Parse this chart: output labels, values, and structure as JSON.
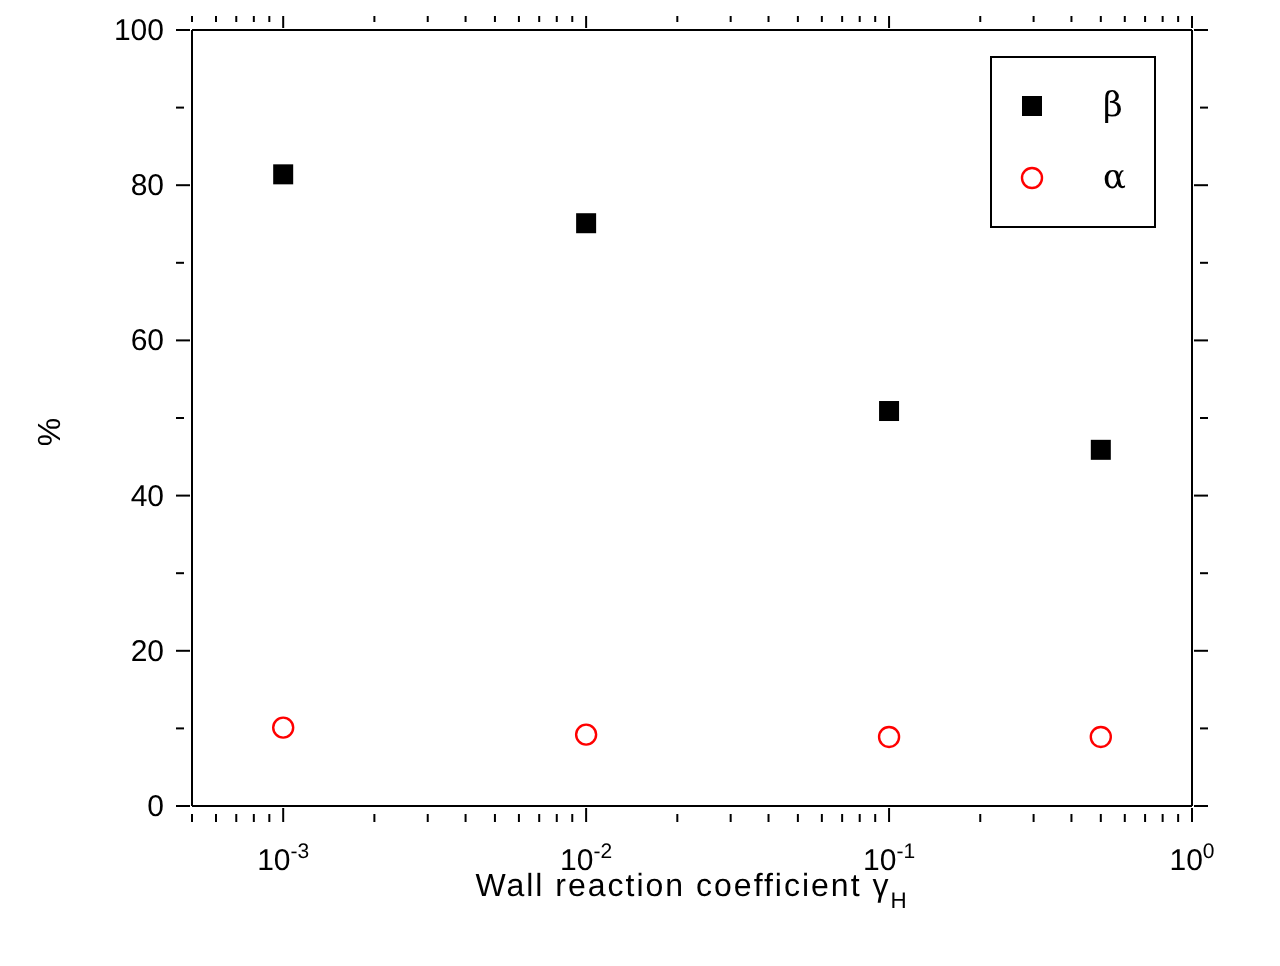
{
  "chart_data": {
    "type": "scatter",
    "xlabel": "Wall reaction coefficient γ$_{H}$",
    "ylabel": "%",
    "log": "x",
    "x": [
      0.001,
      0.01,
      0.1,
      0.5
    ],
    "series": [
      {
        "name": "β",
        "color": "#000000",
        "marker": "square",
        "values": [
          81.4,
          75.1,
          50.9,
          45.9
        ]
      },
      {
        "name": "α",
        "color": "#ff0000",
        "marker": "circle",
        "values": [
          10.1,
          9.2,
          8.9,
          8.9
        ]
      }
    ],
    "xlim": [
      0.0005,
      1
    ],
    "xticks": [
      {
        "value": 0.0005,
        "label": null
      },
      {
        "value": 0.0006,
        "label": null
      },
      {
        "value": 0.0007,
        "label": null
      },
      {
        "value": 0.0008,
        "label": null
      },
      {
        "value": 0.0009,
        "label": null
      },
      {
        "value": 0.001,
        "label": "10$^{-3}$"
      },
      {
        "value": 0.002,
        "label": null
      },
      {
        "value": 0.003,
        "label": null
      },
      {
        "value": 0.004,
        "label": null
      },
      {
        "value": 0.005,
        "label": null
      },
      {
        "value": 0.006,
        "label": null
      },
      {
        "value": 0.007,
        "label": null
      },
      {
        "value": 0.008,
        "label": null
      },
      {
        "value": 0.009,
        "label": null
      },
      {
        "value": 0.01,
        "label": "10$^{-2}$"
      },
      {
        "value": 0.02,
        "label": null
      },
      {
        "value": 0.03,
        "label": null
      },
      {
        "value": 0.04,
        "label": null
      },
      {
        "value": 0.05,
        "label": null
      },
      {
        "value": 0.06,
        "label": null
      },
      {
        "value": 0.07,
        "label": null
      },
      {
        "value": 0.08,
        "label": null
      },
      {
        "value": 0.09,
        "label": null
      },
      {
        "value": 0.1,
        "label": "10$^{-1}$"
      },
      {
        "value": 0.2,
        "label": null
      },
      {
        "value": 0.3,
        "label": null
      },
      {
        "value": 0.4,
        "label": null
      },
      {
        "value": 0.5,
        "label": null
      },
      {
        "value": 0.6,
        "label": null
      },
      {
        "value": 0.7,
        "label": null
      },
      {
        "value": 0.8,
        "label": null
      },
      {
        "value": 0.9,
        "label": null
      },
      {
        "value": 1,
        "label": "10$^{0}$"
      }
    ],
    "ylim": [
      0,
      100
    ],
    "yticks": [
      0,
      {
        "value": 10,
        "label": null
      },
      20,
      {
        "value": 30,
        "label": null
      },
      40,
      {
        "value": 50,
        "label": null
      },
      60,
      {
        "value": 70,
        "label": null
      },
      80,
      {
        "value": 90,
        "label": null
      },
      100
    ],
    "legend": "top right"
  }
}
